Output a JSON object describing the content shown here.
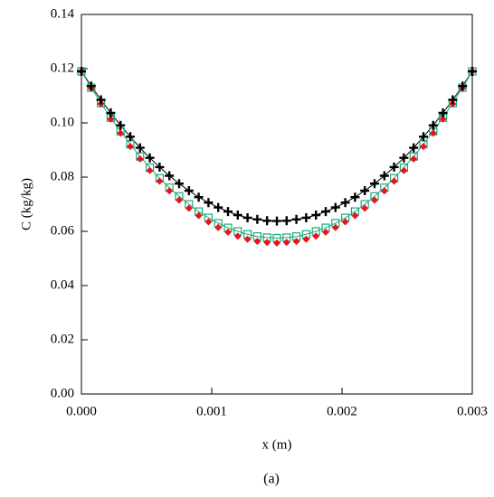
{
  "chart_data": {
    "type": "line",
    "xlabel": "x (m)",
    "ylabel": "C (kg/kg)",
    "caption": "(a)",
    "xlim": [
      0,
      0.003
    ],
    "ylim": [
      0,
      0.14
    ],
    "xticks": [
      {
        "value": 0,
        "label": "0.000"
      },
      {
        "value": 0.001,
        "label": "0.001"
      },
      {
        "value": 0.002,
        "label": "0.002"
      },
      {
        "value": 0.003,
        "label": "0.003"
      }
    ],
    "yticks": [
      {
        "value": 0,
        "label": "0.00"
      },
      {
        "value": 0.02,
        "label": "0.02"
      },
      {
        "value": 0.04,
        "label": "0.04"
      },
      {
        "value": 0.06,
        "label": "0.06"
      },
      {
        "value": 0.08,
        "label": "0.08"
      },
      {
        "value": 0.1,
        "label": "0.10"
      },
      {
        "value": 0.12,
        "label": "0.12"
      },
      {
        "value": 0.14,
        "label": "0.14"
      }
    ],
    "x": [
      0,
      7.5e-05,
      0.00015,
      0.000225,
      0.0003,
      0.000375,
      0.00045,
      0.000525,
      0.0006,
      0.000675,
      0.00075,
      0.000825,
      0.0009,
      0.000975,
      0.00105,
      0.001125,
      0.0012,
      0.001275,
      0.00135,
      0.001425,
      0.0015,
      0.001575,
      0.00165,
      0.001725,
      0.0018,
      0.001875,
      0.00195,
      0.002025,
      0.0021,
      0.002175,
      0.00225,
      0.002325,
      0.0024,
      0.002475,
      0.00255,
      0.002625,
      0.0027,
      0.002775,
      0.00285,
      0.002925,
      0.003
    ],
    "series": [
      {
        "color": "#000000",
        "marker": "plus",
        "line": true,
        "values": [
          0.119,
          0.1136,
          0.1085,
          0.1037,
          0.0991,
          0.0949,
          0.0908,
          0.0871,
          0.0837,
          0.0805,
          0.0776,
          0.075,
          0.0726,
          0.0706,
          0.0688,
          0.0673,
          0.066,
          0.065,
          0.0644,
          0.0639,
          0.0638,
          0.0639,
          0.0644,
          0.065,
          0.066,
          0.0673,
          0.0688,
          0.0706,
          0.0726,
          0.075,
          0.0776,
          0.0805,
          0.0837,
          0.0871,
          0.0908,
          0.0949,
          0.0991,
          0.1037,
          0.1085,
          0.1136,
          0.119
        ]
      },
      {
        "color": "#1aaa7a",
        "marker": "square",
        "line": true,
        "values": [
          0.119,
          0.113,
          0.1073,
          0.1019,
          0.0969,
          0.0921,
          0.0876,
          0.0835,
          0.0796,
          0.0761,
          0.0729,
          0.07,
          0.0673,
          0.065,
          0.063,
          0.0613,
          0.06,
          0.0589,
          0.0581,
          0.0577,
          0.0575,
          0.0577,
          0.0581,
          0.0589,
          0.06,
          0.0613,
          0.063,
          0.065,
          0.0673,
          0.07,
          0.0729,
          0.0761,
          0.0796,
          0.0835,
          0.0876,
          0.0921,
          0.0969,
          0.1019,
          0.1073,
          0.113,
          0.119
        ]
      },
      {
        "color": "#e8141c",
        "marker": "diamond",
        "line": false,
        "values": [
          0.119,
          0.1128,
          0.107,
          0.1014,
          0.0962,
          0.0913,
          0.0867,
          0.0824,
          0.0785,
          0.0749,
          0.0715,
          0.0685,
          0.0658,
          0.0635,
          0.0614,
          0.0597,
          0.0582,
          0.0571,
          0.0563,
          0.0559,
          0.0557,
          0.0559,
          0.0563,
          0.0571,
          0.0582,
          0.0597,
          0.0614,
          0.0635,
          0.0658,
          0.0685,
          0.0715,
          0.0749,
          0.0785,
          0.0824,
          0.0867,
          0.0913,
          0.0962,
          0.1014,
          0.107,
          0.1128,
          0.119
        ]
      }
    ]
  }
}
